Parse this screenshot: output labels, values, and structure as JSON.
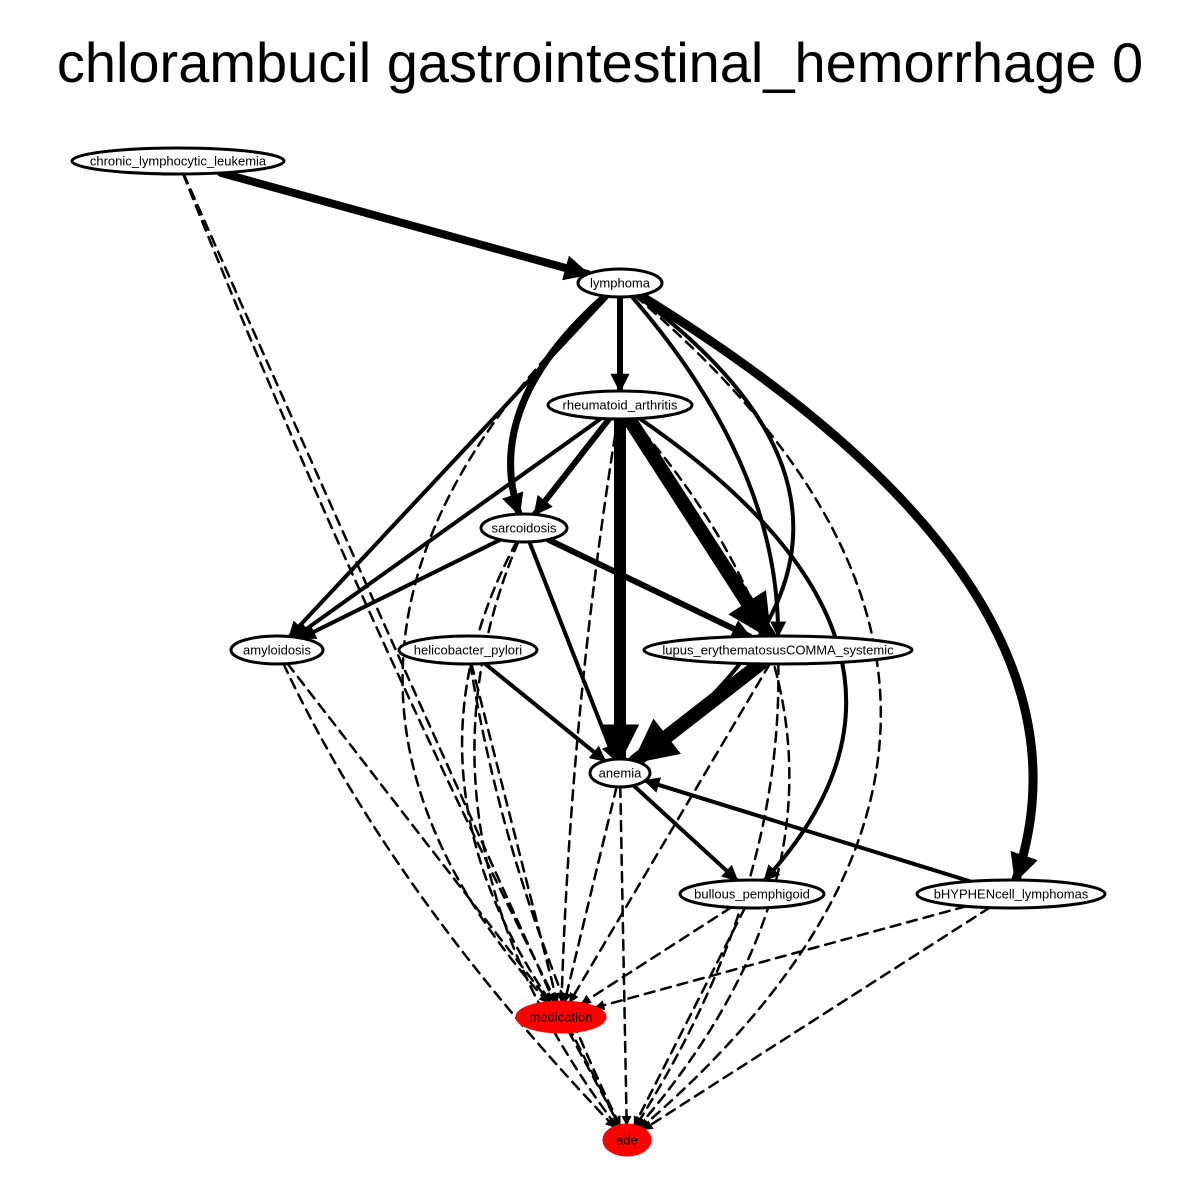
{
  "title": "chlorambucil gastrointestinal_hemorrhage 0",
  "nodes": [
    {
      "id": "cll",
      "label": "chronic_lymphocytic_leukemia",
      "fill": "#ffffff"
    },
    {
      "id": "lymphoma",
      "label": "lymphoma",
      "fill": "#ffffff"
    },
    {
      "id": "ra",
      "label": "rheumatoid_arthritis",
      "fill": "#ffffff"
    },
    {
      "id": "sarcoidosis",
      "label": "sarcoidosis",
      "fill": "#ffffff"
    },
    {
      "id": "amyloidosis",
      "label": "amyloidosis",
      "fill": "#ffffff"
    },
    {
      "id": "hp",
      "label": "helicobacter_pylori",
      "fill": "#ffffff"
    },
    {
      "id": "sle",
      "label": "lupus_erythematosusCOMMA_systemic",
      "fill": "#ffffff"
    },
    {
      "id": "anemia",
      "label": "anemia",
      "fill": "#ffffff"
    },
    {
      "id": "bp",
      "label": "bullous_pemphigoid",
      "fill": "#ffffff"
    },
    {
      "id": "bcl",
      "label": "bHYPHENcell_lymphomas",
      "fill": "#ffffff"
    },
    {
      "id": "medication",
      "label": "medication",
      "fill": "#ff0000"
    },
    {
      "id": "ade",
      "label": "ade",
      "fill": "#ff0000"
    }
  ],
  "edges": [
    {
      "from": "cll",
      "to": "lymphoma",
      "style": "solid",
      "weight": 8
    },
    {
      "from": "cll",
      "to": "medication",
      "style": "dashed",
      "weight": 2.5
    },
    {
      "from": "cll",
      "to": "ade",
      "style": "dashed",
      "weight": 2.5
    },
    {
      "from": "lymphoma",
      "to": "ra",
      "style": "solid",
      "weight": 6
    },
    {
      "from": "lymphoma",
      "to": "sarcoidosis",
      "style": "solid",
      "weight": 7
    },
    {
      "from": "lymphoma",
      "to": "amyloidosis",
      "style": "solid",
      "weight": 4
    },
    {
      "from": "lymphoma",
      "to": "sle",
      "style": "solid",
      "weight": 4
    },
    {
      "from": "lymphoma",
      "to": "anemia",
      "style": "solid",
      "weight": 4
    },
    {
      "from": "lymphoma",
      "to": "bcl",
      "style": "solid",
      "weight": 9
    },
    {
      "from": "lymphoma",
      "to": "medication",
      "style": "dashed",
      "weight": 2.5
    },
    {
      "from": "lymphoma",
      "to": "ade",
      "style": "dashed",
      "weight": 2.5
    },
    {
      "from": "ra",
      "to": "sarcoidosis",
      "style": "solid",
      "weight": 6
    },
    {
      "from": "ra",
      "to": "amyloidosis",
      "style": "solid",
      "weight": 4
    },
    {
      "from": "ra",
      "to": "sle",
      "style": "solid",
      "weight": 14
    },
    {
      "from": "ra",
      "to": "anemia",
      "style": "solid",
      "weight": 12
    },
    {
      "from": "ra",
      "to": "bp",
      "style": "solid",
      "weight": 4
    },
    {
      "from": "ra",
      "to": "medication",
      "style": "dashed",
      "weight": 2.5
    },
    {
      "from": "ra",
      "to": "ade",
      "style": "dashed",
      "weight": 2.5
    },
    {
      "from": "sarcoidosis",
      "to": "amyloidosis",
      "style": "solid",
      "weight": 4
    },
    {
      "from": "sarcoidosis",
      "to": "sle",
      "style": "solid",
      "weight": 6
    },
    {
      "from": "sarcoidosis",
      "to": "anemia",
      "style": "solid",
      "weight": 4
    },
    {
      "from": "sarcoidosis",
      "to": "medication",
      "style": "dashed",
      "weight": 2.5
    },
    {
      "from": "sarcoidosis",
      "to": "ade",
      "style": "dashed",
      "weight": 2.5
    },
    {
      "from": "amyloidosis",
      "to": "medication",
      "style": "dashed",
      "weight": 2.5
    },
    {
      "from": "amyloidosis",
      "to": "ade",
      "style": "dashed",
      "weight": 2.5
    },
    {
      "from": "hp",
      "to": "anemia",
      "style": "solid",
      "weight": 4
    },
    {
      "from": "hp",
      "to": "medication",
      "style": "dashed",
      "weight": 2.5
    },
    {
      "from": "hp",
      "to": "ade",
      "style": "dashed",
      "weight": 2.5
    },
    {
      "from": "sle",
      "to": "anemia",
      "style": "solid",
      "weight": 14
    },
    {
      "from": "sle",
      "to": "medication",
      "style": "dashed",
      "weight": 2.5
    },
    {
      "from": "sle",
      "to": "ade",
      "style": "dashed",
      "weight": 2.5
    },
    {
      "from": "anemia",
      "to": "bp",
      "style": "solid",
      "weight": 4
    },
    {
      "from": "anemia",
      "to": "medication",
      "style": "dashed",
      "weight": 2.5
    },
    {
      "from": "anemia",
      "to": "ade",
      "style": "dashed",
      "weight": 2.5
    },
    {
      "from": "bcl",
      "to": "anemia",
      "style": "solid",
      "weight": 4
    },
    {
      "from": "bp",
      "to": "medication",
      "style": "dashed",
      "weight": 2.5
    },
    {
      "from": "bp",
      "to": "ade",
      "style": "dashed",
      "weight": 2.5
    },
    {
      "from": "bcl",
      "to": "medication",
      "style": "dashed",
      "weight": 2.5
    },
    {
      "from": "bcl",
      "to": "ade",
      "style": "dashed",
      "weight": 2.5
    },
    {
      "from": "medication",
      "to": "ade",
      "style": "dashed",
      "weight": 2.5
    }
  ]
}
